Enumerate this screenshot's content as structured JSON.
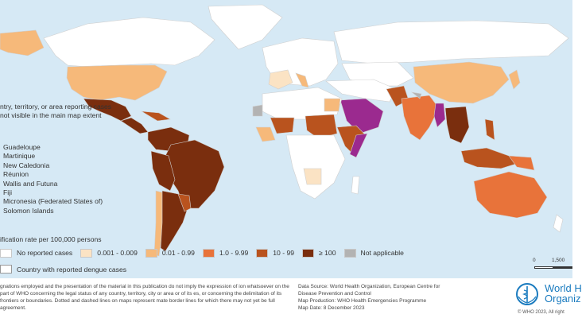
{
  "side_panel": {
    "title": "ntry, territory, or area reporting cases\nnot visible in the main map extent",
    "items": [
      "Guadeloupe",
      "Martinique",
      "New Caledonia",
      "Réunion",
      "Wallis and Futuna",
      "Fiji",
      "Micronesia (Federated States of)",
      "Solomon Islands"
    ]
  },
  "legend": {
    "title": "ification rate per 100,000 persons",
    "items": [
      {
        "label": "No reported cases",
        "color": "#ffffff"
      },
      {
        "label": "0.001 - 0.009",
        "color": "#fbe3c4"
      },
      {
        "label": "0.01 - 0.99",
        "color": "#f6b97a"
      },
      {
        "label": "1.0 - 9.99",
        "color": "#e8733a"
      },
      {
        "label": "10 - 99",
        "color": "#b9531e"
      },
      {
        "label": "≥ 100",
        "color": "#7a2e0e"
      },
      {
        "label": "Not applicable",
        "color": "#b3b3b3"
      }
    ],
    "dengue_label": "Country with reported dengue cases",
    "dengue_color": "#9b2a8f"
  },
  "scale": {
    "zero": "0",
    "value": "1,500"
  },
  "footer": {
    "disclaimer": "gnations employed and the presentation of the material in this publication do not imply the expression of ion whatsoever on the part of WHO concerning the legal status of any country, territory, city or area or of its es, or concerning the delimitation of its frontiers or boundaries. Dotted and dashed lines on maps represent mate border lines for which there may not yet be full agreement.",
    "source": "Data Source: World Health Organization, European Centre for Disease Prevention and Control",
    "production": "Map Production: WHO Health Emergencies Programme",
    "date": "Map Date: 8 December 2023",
    "who_name_1": "World H",
    "who_name_2": "Organiz",
    "copyright": "© WHO 2023, All right"
  },
  "colors": {
    "ocean": "#d6e9f5",
    "land_none": "#ffffff",
    "border": "#cfcfcf"
  }
}
